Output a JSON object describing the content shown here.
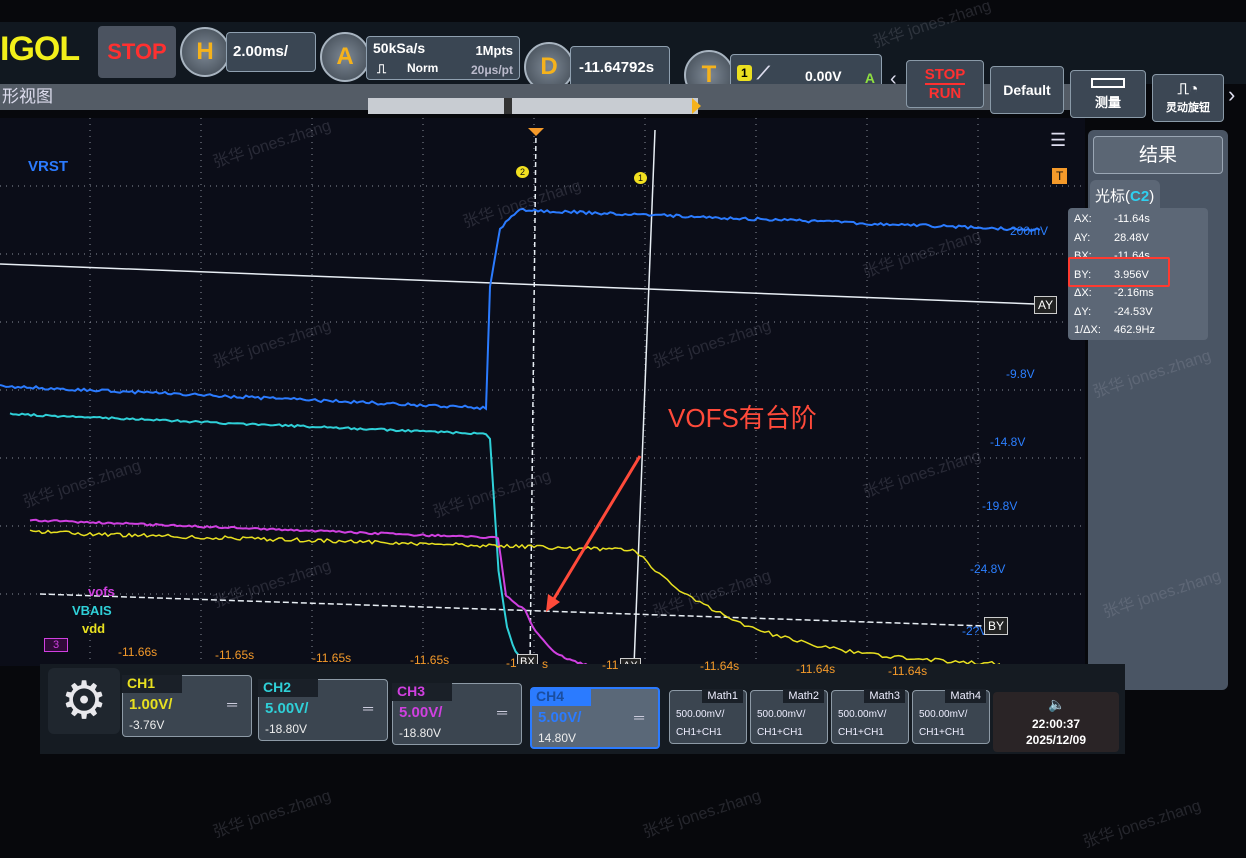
{
  "top": {
    "logo": "IGOL",
    "state": "STOP",
    "h_label": "H",
    "timebase": "2.00ms/",
    "a_label": "A",
    "sample_rate": "50kSa/s",
    "memory_depth": "1Mpts",
    "acq_mode": "Norm",
    "time_per_pt": "20μs/pt",
    "d_label": "D",
    "delay": "-11.64792s",
    "t_label": "T",
    "trigger_source": "1",
    "trigger_level": "0.00V",
    "trigger_mode": "A"
  },
  "buttons": {
    "stop_label": "STOP",
    "run_label": "RUN",
    "default_label": "Default",
    "measure_label": "测量",
    "knob_label": "灵动旋钮"
  },
  "view": {
    "title": "形视图"
  },
  "plot": {
    "labels": [
      {
        "text": "VRST",
        "color": "#2b7bff"
      },
      {
        "text": "vofs",
        "color": "#d040e0"
      },
      {
        "text": "VBAIS",
        "color": "#2fd0d8"
      },
      {
        "text": "vdd",
        "color": "#e8e020"
      }
    ],
    "scale_labels": [
      "200mV",
      "-9.8V",
      "-14.8V",
      "-19.8V",
      "-24.8V",
      "-2?V"
    ],
    "time_ticks": [
      "-11.66s",
      "-11.65s",
      "-11.65s",
      "-11.65s",
      "-1",
      "s",
      "-11",
      "-11.64s",
      "-11.64s",
      "-11.64s"
    ],
    "cursor_labels": {
      "ax": "AX",
      "bx": "BX",
      "ay": "AY",
      "by": "BY"
    },
    "channel_marker": "3",
    "trigger_marker": "T",
    "cursor_markers": [
      "2",
      "1"
    ],
    "annotation": "VOFS有台阶",
    "colors": {
      "ch1": "#e8e020",
      "ch2": "#2fd0d8",
      "ch3": "#d040e0",
      "ch4": "#2b7bff",
      "annotation": "#ff4a3a",
      "cursor": "#e8eef4"
    }
  },
  "results": {
    "title": "结果",
    "tab_prefix": "光标(",
    "tab_channel": "C2",
    "tab_suffix": ")",
    "rows": [
      {
        "k": "AX:",
        "v": "-11.64s"
      },
      {
        "k": "AY:",
        "v": "28.48V"
      },
      {
        "k": "BX:",
        "v": "-11.64s"
      },
      {
        "k": "BY:",
        "v": "3.956V"
      },
      {
        "k": "ΔX:",
        "v": "-2.16ms"
      },
      {
        "k": "ΔY:",
        "v": "-24.53V"
      },
      {
        "k": "1/ΔX:",
        "v": "462.9Hz"
      }
    ]
  },
  "channels": [
    {
      "name": "CH1",
      "scale": "1.00V/",
      "offset": "-3.76V",
      "coupling": "DC",
      "color": "#e8e020"
    },
    {
      "name": "CH2",
      "scale": "5.00V/",
      "offset": "-18.80V",
      "coupling": "DC",
      "color": "#2fd0d8"
    },
    {
      "name": "CH3",
      "scale": "5.00V/",
      "offset": "-18.80V",
      "coupling": "DC",
      "color": "#d040e0"
    },
    {
      "name": "CH4",
      "scale": "5.00V/",
      "offset": "14.80V",
      "coupling": "DC",
      "color": "#2b7bff"
    }
  ],
  "math": [
    {
      "name": "Math1",
      "scale": "500.00mV/",
      "expr": "CH1+CH1"
    },
    {
      "name": "Math2",
      "scale": "500.00mV/",
      "expr": "CH1+CH1"
    },
    {
      "name": "Math3",
      "scale": "500.00mV/",
      "expr": "CH1+CH1"
    },
    {
      "name": "Math4",
      "scale": "500.00mV/",
      "expr": "CH1+CH1"
    }
  ],
  "clock": {
    "time": "22:00:37",
    "date": "2025/12/09"
  },
  "watermark": "张华 jones.zhang"
}
